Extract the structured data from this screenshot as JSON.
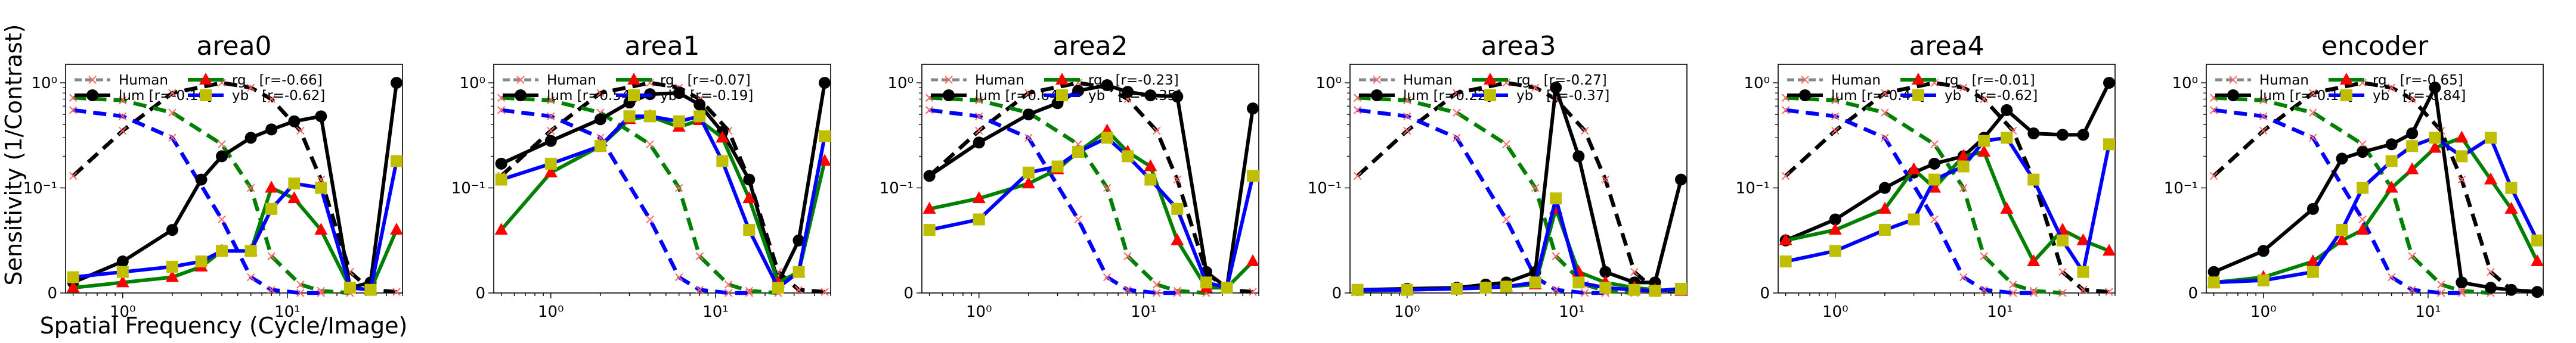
{
  "figure": {
    "ylabel": "Sensitivity (1/Contrast)",
    "xlabel": "Spatial Frequency (Cycle/Image)",
    "colors": {
      "lum": "#000000",
      "rg_line": "#008000",
      "rg_marker": "#ff0000",
      "yb_line": "#0000ff",
      "yb_marker": "#bfbf00",
      "human": "#000000",
      "human_marker": "#ff6666"
    }
  },
  "chart_data": [
    {
      "type": "line",
      "title": "area0",
      "xscale": "log",
      "yscale": "symlog",
      "xlim": [
        0.45,
        50
      ],
      "ylim": [
        0,
        1.5
      ],
      "x": [
        0.5,
        1,
        2,
        3,
        4,
        6,
        8,
        11,
        16,
        24,
        32,
        46
      ],
      "series": [
        {
          "key": "lum",
          "name": "lum",
          "r": "[r=-0.16]",
          "values": [
            0.01,
            0.03,
            0.06,
            0.12,
            0.2,
            0.3,
            0.36,
            0.43,
            0.48,
            0.005,
            0.01,
            1.0
          ]
        },
        {
          "key": "rg",
          "name": "rg",
          "r": "[r=-0.66]",
          "values": [
            0.005,
            0.01,
            0.015,
            0.025,
            0.04,
            0.04,
            0.1,
            0.09,
            0.06,
            0.005,
            0.003,
            0.06
          ]
        },
        {
          "key": "yb",
          "name": "yb",
          "r": "[r=-0.62]",
          "values": [
            0.015,
            0.02,
            0.025,
            0.03,
            0.04,
            0.04,
            0.08,
            0.11,
            0.1,
            0.005,
            0.003,
            0.18
          ]
        }
      ],
      "human": {
        "lum": {
          "x": [
            0.5,
            1,
            2,
            4,
            6,
            8,
            12,
            16,
            24,
            32,
            46
          ],
          "values": [
            0.13,
            0.35,
            0.8,
            1.0,
            0.9,
            0.7,
            0.35,
            0.12,
            0.02,
            0.003,
            0.001
          ]
        },
        "rg": {
          "x": [
            0.5,
            1,
            2,
            4,
            6,
            8,
            12,
            16,
            24
          ],
          "values": [
            0.72,
            0.68,
            0.52,
            0.26,
            0.1,
            0.035,
            0.008,
            0.002,
            0.0
          ]
        },
        "yb": {
          "x": [
            0.5,
            1,
            2,
            4,
            6,
            8,
            12,
            16
          ],
          "values": [
            0.55,
            0.48,
            0.3,
            0.07,
            0.015,
            0.003,
            0.0,
            0.0
          ]
        }
      }
    },
    {
      "type": "line",
      "title": "area1",
      "xscale": "log",
      "yscale": "symlog",
      "xlim": [
        0.45,
        50
      ],
      "ylim": [
        0,
        1.5
      ],
      "x": [
        0.5,
        1,
        2,
        3,
        4,
        6,
        8,
        11,
        16,
        24,
        32,
        46
      ],
      "series": [
        {
          "key": "lum",
          "name": "lum",
          "r": "[r=0.54]",
          "values": [
            0.17,
            0.28,
            0.45,
            0.65,
            0.78,
            0.8,
            0.62,
            0.34,
            0.12,
            0.01,
            0.05,
            1.0
          ]
        },
        {
          "key": "rg",
          "name": "rg",
          "r": "[r=-0.07]",
          "values": [
            0.06,
            0.14,
            0.25,
            0.45,
            0.48,
            0.38,
            0.44,
            0.3,
            0.09,
            0.01,
            0.02,
            0.18
          ]
        },
        {
          "key": "yb",
          "name": "yb",
          "r": "[r=-0.19]",
          "values": [
            0.12,
            0.17,
            0.25,
            0.48,
            0.48,
            0.43,
            0.48,
            0.18,
            0.06,
            0.005,
            0.02,
            0.31
          ]
        }
      ],
      "human": {
        "lum": {
          "x": [
            0.5,
            1,
            2,
            4,
            6,
            8,
            12,
            16,
            24,
            32,
            46
          ],
          "values": [
            0.13,
            0.35,
            0.8,
            1.0,
            0.9,
            0.7,
            0.35,
            0.12,
            0.02,
            0.003,
            0.001
          ]
        },
        "rg": {
          "x": [
            0.5,
            1,
            2,
            4,
            6,
            8,
            12,
            16,
            24
          ],
          "values": [
            0.72,
            0.68,
            0.52,
            0.26,
            0.1,
            0.035,
            0.008,
            0.002,
            0.0
          ]
        },
        "yb": {
          "x": [
            0.5,
            1,
            2,
            4,
            6,
            8,
            12,
            16
          ],
          "values": [
            0.55,
            0.48,
            0.3,
            0.07,
            0.015,
            0.003,
            0.0,
            0.0
          ]
        }
      }
    },
    {
      "type": "line",
      "title": "area2",
      "xscale": "log",
      "yscale": "symlog",
      "xlim": [
        0.45,
        50
      ],
      "ylim": [
        0,
        1.5
      ],
      "x": [
        0.5,
        1,
        2,
        3,
        4,
        6,
        8,
        11,
        16,
        24,
        32,
        46
      ],
      "series": [
        {
          "key": "lum",
          "name": "lum",
          "r": "[r=0.64]",
          "values": [
            0.13,
            0.27,
            0.5,
            0.64,
            0.84,
            0.95,
            0.82,
            0.76,
            0.74,
            0.02,
            0.005,
            0.57
          ]
        },
        {
          "key": "rg",
          "name": "rg",
          "r": "[r=-0.23]",
          "values": [
            0.08,
            0.09,
            0.11,
            0.15,
            0.22,
            0.35,
            0.22,
            0.16,
            0.05,
            0.005,
            0.005,
            0.03
          ]
        },
        {
          "key": "yb",
          "name": "yb",
          "r": "[r=-0.35]",
          "values": [
            0.06,
            0.07,
            0.14,
            0.16,
            0.22,
            0.3,
            0.2,
            0.12,
            0.08,
            0.01,
            0.005,
            0.13
          ]
        }
      ],
      "human": {
        "lum": {
          "x": [
            0.5,
            1,
            2,
            4,
            6,
            8,
            12,
            16,
            24,
            32,
            46
          ],
          "values": [
            0.13,
            0.35,
            0.8,
            1.0,
            0.9,
            0.7,
            0.35,
            0.12,
            0.02,
            0.003,
            0.001
          ]
        },
        "rg": {
          "x": [
            0.5,
            1,
            2,
            4,
            6,
            8,
            12,
            16,
            24
          ],
          "values": [
            0.72,
            0.68,
            0.52,
            0.26,
            0.1,
            0.035,
            0.008,
            0.002,
            0.0
          ]
        },
        "yb": {
          "x": [
            0.5,
            1,
            2,
            4,
            6,
            8,
            12,
            16
          ],
          "values": [
            0.55,
            0.48,
            0.3,
            0.07,
            0.015,
            0.003,
            0.0,
            0.0
          ]
        }
      }
    },
    {
      "type": "line",
      "title": "area3",
      "xscale": "log",
      "yscale": "symlog",
      "xlim": [
        0.45,
        50
      ],
      "ylim": [
        0,
        1.5
      ],
      "x": [
        0.5,
        1,
        2,
        3,
        4,
        6,
        8,
        11,
        16,
        24,
        32,
        46
      ],
      "series": [
        {
          "key": "lum",
          "name": "lum",
          "r": "[r=0.22]",
          "values": [
            0.003,
            0.004,
            0.005,
            0.008,
            0.01,
            0.02,
            0.9,
            0.2,
            0.02,
            0.01,
            0.01,
            0.12
          ]
        },
        {
          "key": "rg",
          "name": "rg",
          "r": "[r=-0.27]",
          "values": [
            0.002,
            0.003,
            0.004,
            0.005,
            0.006,
            0.008,
            0.08,
            0.02,
            0.01,
            0.005,
            0.003,
            0.002
          ]
        },
        {
          "key": "yb",
          "name": "yb",
          "r": "[r=-0.37]",
          "values": [
            0.003,
            0.003,
            0.004,
            0.005,
            0.006,
            0.01,
            0.09,
            0.01,
            0.005,
            0.003,
            0.002,
            0.004
          ]
        }
      ],
      "human": {
        "lum": {
          "x": [
            0.5,
            1,
            2,
            4,
            6,
            8,
            12,
            16,
            24,
            32,
            46
          ],
          "values": [
            0.13,
            0.35,
            0.8,
            1.0,
            0.9,
            0.7,
            0.35,
            0.12,
            0.02,
            0.003,
            0.001
          ]
        },
        "rg": {
          "x": [
            0.5,
            1,
            2,
            4,
            6,
            8,
            12,
            16,
            24
          ],
          "values": [
            0.72,
            0.68,
            0.52,
            0.26,
            0.1,
            0.035,
            0.008,
            0.002,
            0.0
          ]
        },
        "yb": {
          "x": [
            0.5,
            1,
            2,
            4,
            6,
            8,
            12,
            16
          ],
          "values": [
            0.55,
            0.48,
            0.3,
            0.07,
            0.015,
            0.003,
            0.0,
            0.0
          ]
        }
      }
    },
    {
      "type": "line",
      "title": "area4",
      "xscale": "log",
      "yscale": "symlog",
      "xlim": [
        0.45,
        50
      ],
      "ylim": [
        0,
        1.5
      ],
      "x": [
        0.5,
        1,
        2,
        3,
        4,
        6,
        8,
        11,
        16,
        24,
        32,
        46
      ],
      "series": [
        {
          "key": "lum",
          "name": "lum",
          "r": "[r=-0.41]",
          "values": [
            0.05,
            0.07,
            0.1,
            0.14,
            0.17,
            0.2,
            0.3,
            0.55,
            0.33,
            0.32,
            0.32,
            1.0
          ]
        },
        {
          "key": "rg",
          "name": "rg",
          "r": "[r=-0.01]",
          "values": [
            0.05,
            0.06,
            0.08,
            0.15,
            0.1,
            0.2,
            0.22,
            0.08,
            0.03,
            0.06,
            0.05,
            0.04
          ]
        },
        {
          "key": "yb",
          "name": "yb",
          "r": "[r=-0.62]",
          "values": [
            0.03,
            0.04,
            0.06,
            0.07,
            0.12,
            0.16,
            0.28,
            0.3,
            0.12,
            0.05,
            0.02,
            0.26
          ]
        }
      ],
      "human": {
        "lum": {
          "x": [
            0.5,
            1,
            2,
            4,
            6,
            8,
            12,
            16,
            24,
            32,
            46
          ],
          "values": [
            0.13,
            0.35,
            0.8,
            1.0,
            0.9,
            0.7,
            0.35,
            0.12,
            0.02,
            0.003,
            0.001
          ]
        },
        "rg": {
          "x": [
            0.5,
            1,
            2,
            4,
            6,
            8,
            12,
            16,
            24
          ],
          "values": [
            0.72,
            0.68,
            0.52,
            0.26,
            0.1,
            0.035,
            0.008,
            0.002,
            0.0
          ]
        },
        "yb": {
          "x": [
            0.5,
            1,
            2,
            4,
            6,
            8,
            12,
            16
          ],
          "values": [
            0.55,
            0.48,
            0.3,
            0.07,
            0.015,
            0.003,
            0.0,
            0.0
          ]
        }
      }
    },
    {
      "type": "line",
      "title": "encoder",
      "xscale": "log",
      "yscale": "symlog",
      "xlim": [
        0.45,
        50
      ],
      "ylim": [
        0,
        1.5
      ],
      "x": [
        0.5,
        1,
        2,
        3,
        4,
        6,
        8,
        11,
        16,
        24,
        32,
        46
      ],
      "series": [
        {
          "key": "lum",
          "name": "lum",
          "r": "[r=-0.19]",
          "values": [
            0.02,
            0.04,
            0.08,
            0.19,
            0.22,
            0.26,
            0.33,
            0.9,
            0.01,
            0.005,
            0.003,
            0.001
          ]
        },
        {
          "key": "rg",
          "name": "rg",
          "r": "[r=-0.65]",
          "values": [
            0.01,
            0.015,
            0.03,
            0.05,
            0.06,
            0.1,
            0.15,
            0.24,
            0.3,
            0.12,
            0.08,
            0.03
          ]
        },
        {
          "key": "yb",
          "name": "yb",
          "r": "[r=-0.84]",
          "values": [
            0.01,
            0.012,
            0.02,
            0.06,
            0.1,
            0.18,
            0.25,
            0.3,
            0.2,
            0.3,
            0.1,
            0.05
          ]
        }
      ],
      "human": {
        "lum": {
          "x": [
            0.5,
            1,
            2,
            4,
            6,
            8,
            12,
            16,
            24,
            32,
            46
          ],
          "values": [
            0.13,
            0.35,
            0.8,
            1.0,
            0.9,
            0.7,
            0.35,
            0.12,
            0.02,
            0.003,
            0.001
          ]
        },
        "rg": {
          "x": [
            0.5,
            1,
            2,
            4,
            6,
            8,
            12,
            16,
            24
          ],
          "values": [
            0.72,
            0.68,
            0.52,
            0.26,
            0.1,
            0.035,
            0.008,
            0.002,
            0.0
          ]
        },
        "yb": {
          "x": [
            0.5,
            1,
            2,
            4,
            6,
            8,
            12,
            16
          ],
          "values": [
            0.55,
            0.48,
            0.3,
            0.07,
            0.015,
            0.003,
            0.0,
            0.0
          ]
        }
      }
    }
  ],
  "legend": {
    "human_label": "Human",
    "lum_label": "lum",
    "rg_label": "rg",
    "yb_label": "yb"
  },
  "ticks": {
    "x": [
      {
        "v": 1,
        "label": "10⁰"
      },
      {
        "v": 10,
        "label": "10¹"
      }
    ],
    "y": [
      {
        "v": 0,
        "label": "0"
      },
      {
        "v": 0.1,
        "label": "10⁻¹"
      },
      {
        "v": 1,
        "label": "10⁰"
      }
    ]
  }
}
